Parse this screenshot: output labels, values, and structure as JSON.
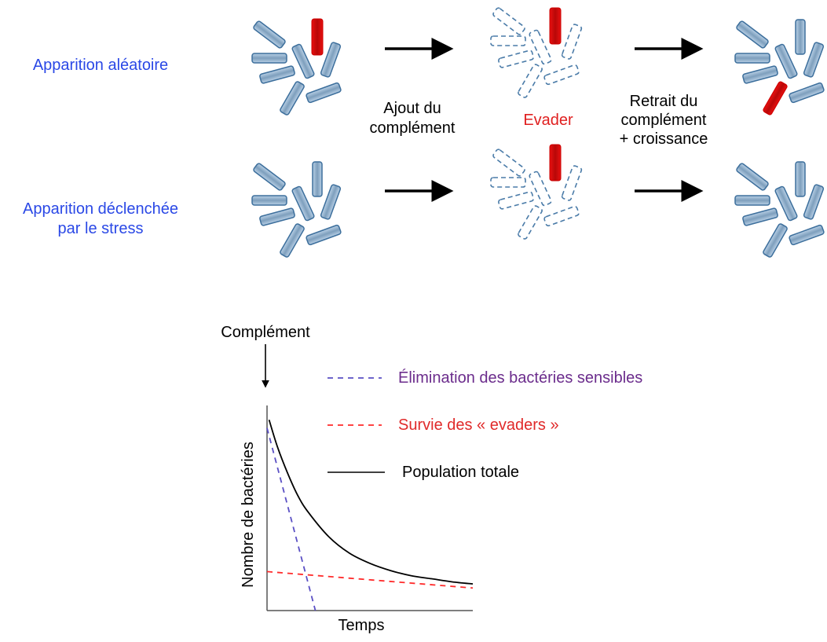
{
  "rows": [
    {
      "label_lines": [
        "Apparition aléatoire"
      ]
    },
    {
      "label_lines": [
        "Apparition déclenchée",
        "par le stress"
      ]
    }
  ],
  "step1_label_lines": [
    "Ajout du",
    "complément"
  ],
  "evader_label": "Evader",
  "step2_label_lines": [
    "Retrait du",
    "complément",
    "+ croissance"
  ],
  "colors": {
    "label_blue": "#2a48e6",
    "evader_red": "#e02020",
    "rod_blue": "#8fb1cf",
    "rod_stroke": "#3d6f9c",
    "purple": "#6b2c8c"
  },
  "chart": {
    "marker_label": "Complément",
    "legend": [
      {
        "label": "Élimination des bactéries sensibles",
        "style": "dashed",
        "color": "#5a4fc4",
        "text_color": "#6b2c8c"
      },
      {
        "label": "Survie des « evaders »",
        "style": "dashed",
        "color": "#ff2a2a",
        "text_color": "#e02a2a"
      },
      {
        "label": "Population totale",
        "style": "solid",
        "color": "#000000",
        "text_color": "#000000"
      }
    ]
  },
  "chart_data": {
    "type": "line",
    "xlabel": "Temps",
    "ylabel": "Nombre de bactéries",
    "xlim": [
      0,
      10
    ],
    "ylim": [
      0,
      100
    ],
    "series": [
      {
        "name": "Élimination des bactéries sensibles",
        "x": [
          0,
          2.35
        ],
        "y": [
          89,
          0
        ]
      },
      {
        "name": "Survie des « evaders »",
        "x": [
          0,
          10
        ],
        "y": [
          19,
          11
        ]
      },
      {
        "name": "Population totale",
        "x": [
          0.1,
          0.5,
          1,
          1.5,
          2,
          3,
          4,
          5,
          6,
          7,
          8,
          9,
          10
        ],
        "y": [
          93,
          80,
          67,
          56,
          48,
          36,
          28,
          23,
          19.5,
          17,
          15.5,
          14,
          13
        ]
      }
    ]
  }
}
